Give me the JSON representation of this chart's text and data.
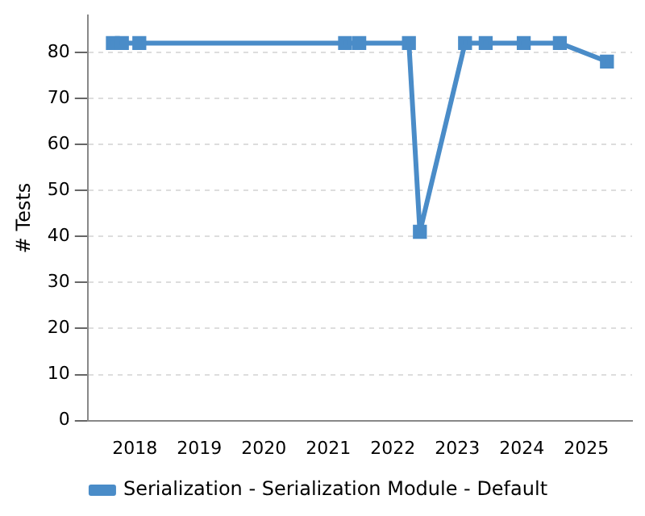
{
  "chart_data": {
    "type": "line",
    "ylabel": "# Tests",
    "x": [
      2017.66,
      2017.8,
      2018.07,
      2021.26,
      2021.48,
      2022.25,
      2022.42,
      2023.12,
      2023.44,
      2024.03,
      2024.59,
      2025.32
    ],
    "series": [
      {
        "name": "Serialization - Serialization Module - Default",
        "color": "#4a8cc8",
        "values": [
          82,
          82,
          82,
          82,
          82,
          82,
          41,
          82,
          82,
          82,
          82,
          78
        ]
      }
    ],
    "xlim": [
      2017.27,
      2025.71
    ],
    "xticks": [
      2018,
      2019,
      2020,
      2021,
      2022,
      2023,
      2024,
      2025
    ],
    "ylim": [
      0,
      88
    ],
    "yticks": [
      0,
      10,
      20,
      30,
      40,
      50,
      60,
      70,
      80
    ],
    "grid": "y",
    "legend": "bottom",
    "marker": "square",
    "line_style": "solid"
  }
}
